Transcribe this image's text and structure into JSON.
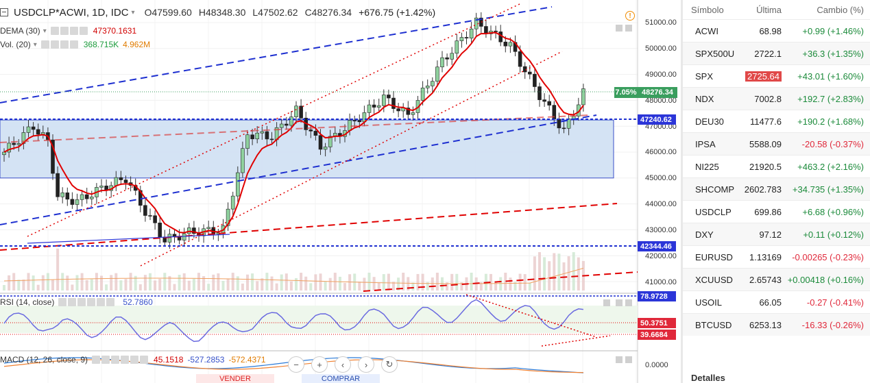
{
  "header": {
    "symbol": "USDCLP*ACWI, 1D, IDC",
    "open": "O47599.60",
    "high": "H48348.30",
    "low": "L47502.62",
    "close": "C48276.34",
    "change": "+676.75 (+1.42%)"
  },
  "indicators": {
    "dema_label": "DEMA (30)",
    "dema_value": "47370.1631",
    "vol_label": "Vol. (20)",
    "vol_value1": "368.715K",
    "vol_value2": "4.962M",
    "rsi_label": "RSI (14, close)",
    "rsi_value": "52.7860",
    "macd_label": "MACD (12, 26, close, 9)",
    "macd_v1": "45.1518",
    "macd_v2": "-527.2853",
    "macd_v3": "-572.4371"
  },
  "price_axis": {
    "ticks": [
      "51000.00",
      "50000.00",
      "49000.00",
      "48000.00",
      "47000.00",
      "46000.00",
      "45000.00",
      "44000.00",
      "43000.00",
      "42000.00",
      "41000.00"
    ],
    "pct_change": "7.05%",
    "last_price": "48276.34",
    "level_1": "47240.62",
    "level_2": "42344.46",
    "rsi_hi": "78.9728",
    "rsi_mid": "50.3751",
    "rsi_lo": "39.6684",
    "macd_zero": "0.0000"
  },
  "trade": {
    "sell_label": "VENDER",
    "buy_label": "COMPRAR"
  },
  "watchlist": {
    "col_symbol": "Símbolo",
    "col_last": "Última",
    "col_change": "Cambio (%)",
    "rows": [
      {
        "sym": "ACWI",
        "last": "68.98",
        "chg": "+0.99 (+1.46%)",
        "dir": "pos"
      },
      {
        "sym": "SPX500U",
        "last": "2722.1",
        "chg": "+36.3 (+1.35%)",
        "dir": "pos"
      },
      {
        "sym": "SPX",
        "last": "2725.64",
        "chg": "+43.01 (+1.60%)",
        "dir": "pos"
      },
      {
        "sym": "NDX",
        "last": "7002.8",
        "chg": "+192.7 (+2.83%)",
        "dir": "pos"
      },
      {
        "sym": "DEU30",
        "last": "11477.6",
        "chg": "+190.2 (+1.68%)",
        "dir": "pos"
      },
      {
        "sym": "IPSA",
        "last": "5588.09",
        "chg": "-20.58 (-0.37%)",
        "dir": "neg"
      },
      {
        "sym": "NI225",
        "last": "21920.5",
        "chg": "+463.2 (+2.16%)",
        "dir": "pos"
      },
      {
        "sym": "SHCOMP",
        "last": "2602.783",
        "chg": "+34.735 (+1.35%)",
        "dir": "pos"
      },
      {
        "sym": "USDCLP",
        "last": "699.86",
        "chg": "+6.68 (+0.96%)",
        "dir": "pos"
      },
      {
        "sym": "DXY",
        "last": "97.12",
        "chg": "+0.11 (+0.12%)",
        "dir": "pos"
      },
      {
        "sym": "EURUSD",
        "last": "1.13169",
        "chg": "-0.00265 (-0.23%)",
        "dir": "neg"
      },
      {
        "sym": "XCUUSD",
        "last": "2.65743",
        "chg": "+0.00418 (+0.16%)",
        "dir": "pos"
      },
      {
        "sym": "USOIL",
        "last": "66.05",
        "chg": "-0.27 (-0.41%)",
        "dir": "neg"
      },
      {
        "sym": "BTCUSD",
        "last": "6253.13",
        "chg": "-16.33 (-0.26%)",
        "dir": "neg"
      }
    ],
    "details_label": "Detalles"
  },
  "colors": {
    "up": "#1b8a3a",
    "down": "#e0283a",
    "highlight": "#e04848",
    "accent": "#2b46d6"
  }
}
